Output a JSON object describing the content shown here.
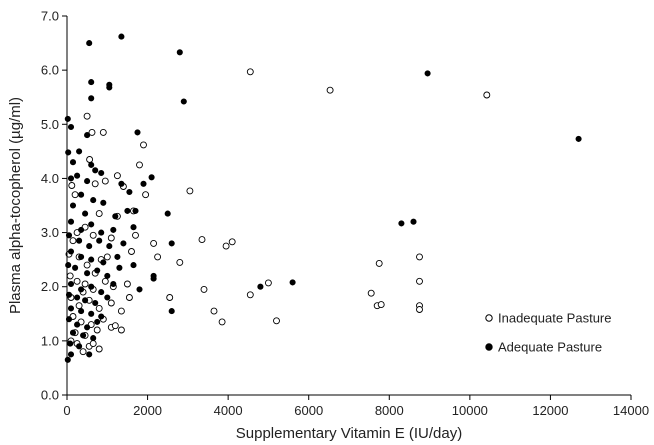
{
  "chart_data": {
    "type": "scatter",
    "title": "",
    "xlabel": "Supplementary Vitamin E (IU/day)",
    "ylabel": "Plasma alpha-tocopherol (µg/ml)",
    "xlim": [
      0,
      14000
    ],
    "ylim": [
      0,
      7
    ],
    "xticks": [
      0,
      2000,
      4000,
      6000,
      8000,
      10000,
      12000,
      14000
    ],
    "yticks": [
      "0.0",
      "1.0",
      "2.0",
      "3.0",
      "4.0",
      "5.0",
      "6.0",
      "7.0"
    ],
    "grid": false,
    "legend_position": "bottom-right",
    "series": [
      {
        "name": "Inadequate Pasture",
        "marker": "open-circle",
        "color": "#000000",
        "points": [
          [
            4550,
            5.97
          ],
          [
            6530,
            5.63
          ],
          [
            10420,
            5.54
          ],
          [
            500,
            5.15
          ],
          [
            620,
            4.85
          ],
          [
            900,
            4.85
          ],
          [
            1900,
            4.62
          ],
          [
            1800,
            4.25
          ],
          [
            560,
            4.35
          ],
          [
            120,
            3.87
          ],
          [
            200,
            3.7
          ],
          [
            700,
            3.9
          ],
          [
            950,
            3.95
          ],
          [
            1250,
            4.05
          ],
          [
            1400,
            3.85
          ],
          [
            3050,
            3.77
          ],
          [
            1650,
            3.4
          ],
          [
            1950,
            3.7
          ],
          [
            1250,
            3.3
          ],
          [
            800,
            3.35
          ],
          [
            450,
            3.1
          ],
          [
            250,
            3.0
          ],
          [
            150,
            2.85
          ],
          [
            650,
            2.95
          ],
          [
            1100,
            2.9
          ],
          [
            1700,
            2.95
          ],
          [
            2150,
            2.8
          ],
          [
            3350,
            2.87
          ],
          [
            3950,
            2.75
          ],
          [
            4100,
            2.83
          ],
          [
            50,
            2.6
          ],
          [
            300,
            2.55
          ],
          [
            500,
            2.4
          ],
          [
            850,
            2.5
          ],
          [
            1000,
            2.55
          ],
          [
            1600,
            2.65
          ],
          [
            2250,
            2.55
          ],
          [
            2800,
            2.45
          ],
          [
            7750,
            2.43
          ],
          [
            8750,
            2.55
          ],
          [
            80,
            2.2
          ],
          [
            250,
            2.1
          ],
          [
            450,
            2.05
          ],
          [
            700,
            2.25
          ],
          [
            950,
            2.1
          ],
          [
            1150,
            2.0
          ],
          [
            1500,
            2.05
          ],
          [
            400,
            1.9
          ],
          [
            650,
            1.95
          ],
          [
            3400,
            1.95
          ],
          [
            5000,
            2.07
          ],
          [
            8750,
            2.1
          ],
          [
            100,
            1.8
          ],
          [
            300,
            1.65
          ],
          [
            550,
            1.75
          ],
          [
            800,
            1.6
          ],
          [
            1100,
            1.7
          ],
          [
            1350,
            1.55
          ],
          [
            1550,
            1.8
          ],
          [
            2550,
            1.8
          ],
          [
            4550,
            1.85
          ],
          [
            7550,
            1.88
          ],
          [
            7700,
            1.65
          ],
          [
            7800,
            1.67
          ],
          [
            8750,
            1.65
          ],
          [
            8750,
            1.58
          ],
          [
            3650,
            1.55
          ],
          [
            3850,
            1.35
          ],
          [
            5200,
            1.37
          ],
          [
            150,
            1.45
          ],
          [
            350,
            1.35
          ],
          [
            600,
            1.3
          ],
          [
            900,
            1.4
          ],
          [
            1100,
            1.25
          ],
          [
            1200,
            1.28
          ],
          [
            1350,
            1.2
          ],
          [
            200,
            1.15
          ],
          [
            450,
            1.1
          ],
          [
            750,
            1.2
          ],
          [
            250,
            0.95
          ],
          [
            400,
            0.8
          ],
          [
            550,
            0.9
          ],
          [
            650,
            0.95
          ],
          [
            800,
            0.85
          ],
          [
            100,
            1.0
          ]
        ]
      },
      {
        "name": "Adequate Pasture",
        "marker": "filled-circle",
        "color": "#000000",
        "points": [
          [
            1350,
            6.62
          ],
          [
            550,
            6.5
          ],
          [
            2800,
            6.33
          ],
          [
            8950,
            5.94
          ],
          [
            600,
            5.78
          ],
          [
            1050,
            5.73
          ],
          [
            1050,
            5.68
          ],
          [
            2900,
            5.42
          ],
          [
            600,
            5.48
          ],
          [
            12700,
            4.73
          ],
          [
            20,
            5.1
          ],
          [
            100,
            4.95
          ],
          [
            30,
            4.48
          ],
          [
            1750,
            4.85
          ],
          [
            500,
            4.8
          ],
          [
            300,
            4.5
          ],
          [
            150,
            4.3
          ],
          [
            600,
            4.25
          ],
          [
            250,
            4.05
          ],
          [
            700,
            4.15
          ],
          [
            100,
            4.0
          ],
          [
            500,
            3.95
          ],
          [
            850,
            4.1
          ],
          [
            1350,
            3.9
          ],
          [
            2100,
            4.02
          ],
          [
            1550,
            3.75
          ],
          [
            1900,
            3.9
          ],
          [
            1700,
            3.4
          ],
          [
            2500,
            3.35
          ],
          [
            350,
            3.7
          ],
          [
            650,
            3.6
          ],
          [
            150,
            3.5
          ],
          [
            450,
            3.35
          ],
          [
            900,
            3.55
          ],
          [
            1200,
            3.3
          ],
          [
            1500,
            3.4
          ],
          [
            100,
            3.2
          ],
          [
            350,
            3.05
          ],
          [
            600,
            3.15
          ],
          [
            850,
            3.0
          ],
          [
            1150,
            3.05
          ],
          [
            1650,
            3.1
          ],
          [
            8300,
            3.17
          ],
          [
            8600,
            3.2
          ],
          [
            50,
            2.95
          ],
          [
            300,
            2.85
          ],
          [
            550,
            2.75
          ],
          [
            800,
            2.85
          ],
          [
            1050,
            2.75
          ],
          [
            1400,
            2.8
          ],
          [
            2600,
            2.8
          ],
          [
            100,
            2.65
          ],
          [
            350,
            2.55
          ],
          [
            600,
            2.5
          ],
          [
            900,
            2.45
          ],
          [
            1250,
            2.55
          ],
          [
            1650,
            2.4
          ],
          [
            30,
            2.4
          ],
          [
            200,
            2.35
          ],
          [
            500,
            2.25
          ],
          [
            750,
            2.3
          ],
          [
            1000,
            2.2
          ],
          [
            1300,
            2.35
          ],
          [
            2150,
            2.2
          ],
          [
            2150,
            2.15
          ],
          [
            100,
            2.05
          ],
          [
            350,
            1.95
          ],
          [
            600,
            2.0
          ],
          [
            850,
            1.9
          ],
          [
            1150,
            2.05
          ],
          [
            1800,
            1.95
          ],
          [
            4800,
            2.0
          ],
          [
            5600,
            2.08
          ],
          [
            50,
            1.85
          ],
          [
            250,
            1.8
          ],
          [
            450,
            1.75
          ],
          [
            700,
            1.7
          ],
          [
            1000,
            1.8
          ],
          [
            100,
            1.6
          ],
          [
            350,
            1.55
          ],
          [
            600,
            1.5
          ],
          [
            850,
            1.45
          ],
          [
            2600,
            1.55
          ],
          [
            50,
            1.4
          ],
          [
            250,
            1.3
          ],
          [
            500,
            1.25
          ],
          [
            750,
            1.35
          ],
          [
            150,
            1.15
          ],
          [
            400,
            1.1
          ],
          [
            650,
            1.05
          ],
          [
            80,
            0.95
          ],
          [
            300,
            0.9
          ],
          [
            550,
            0.75
          ],
          [
            100,
            0.75
          ],
          [
            20,
            0.65
          ]
        ]
      }
    ]
  }
}
